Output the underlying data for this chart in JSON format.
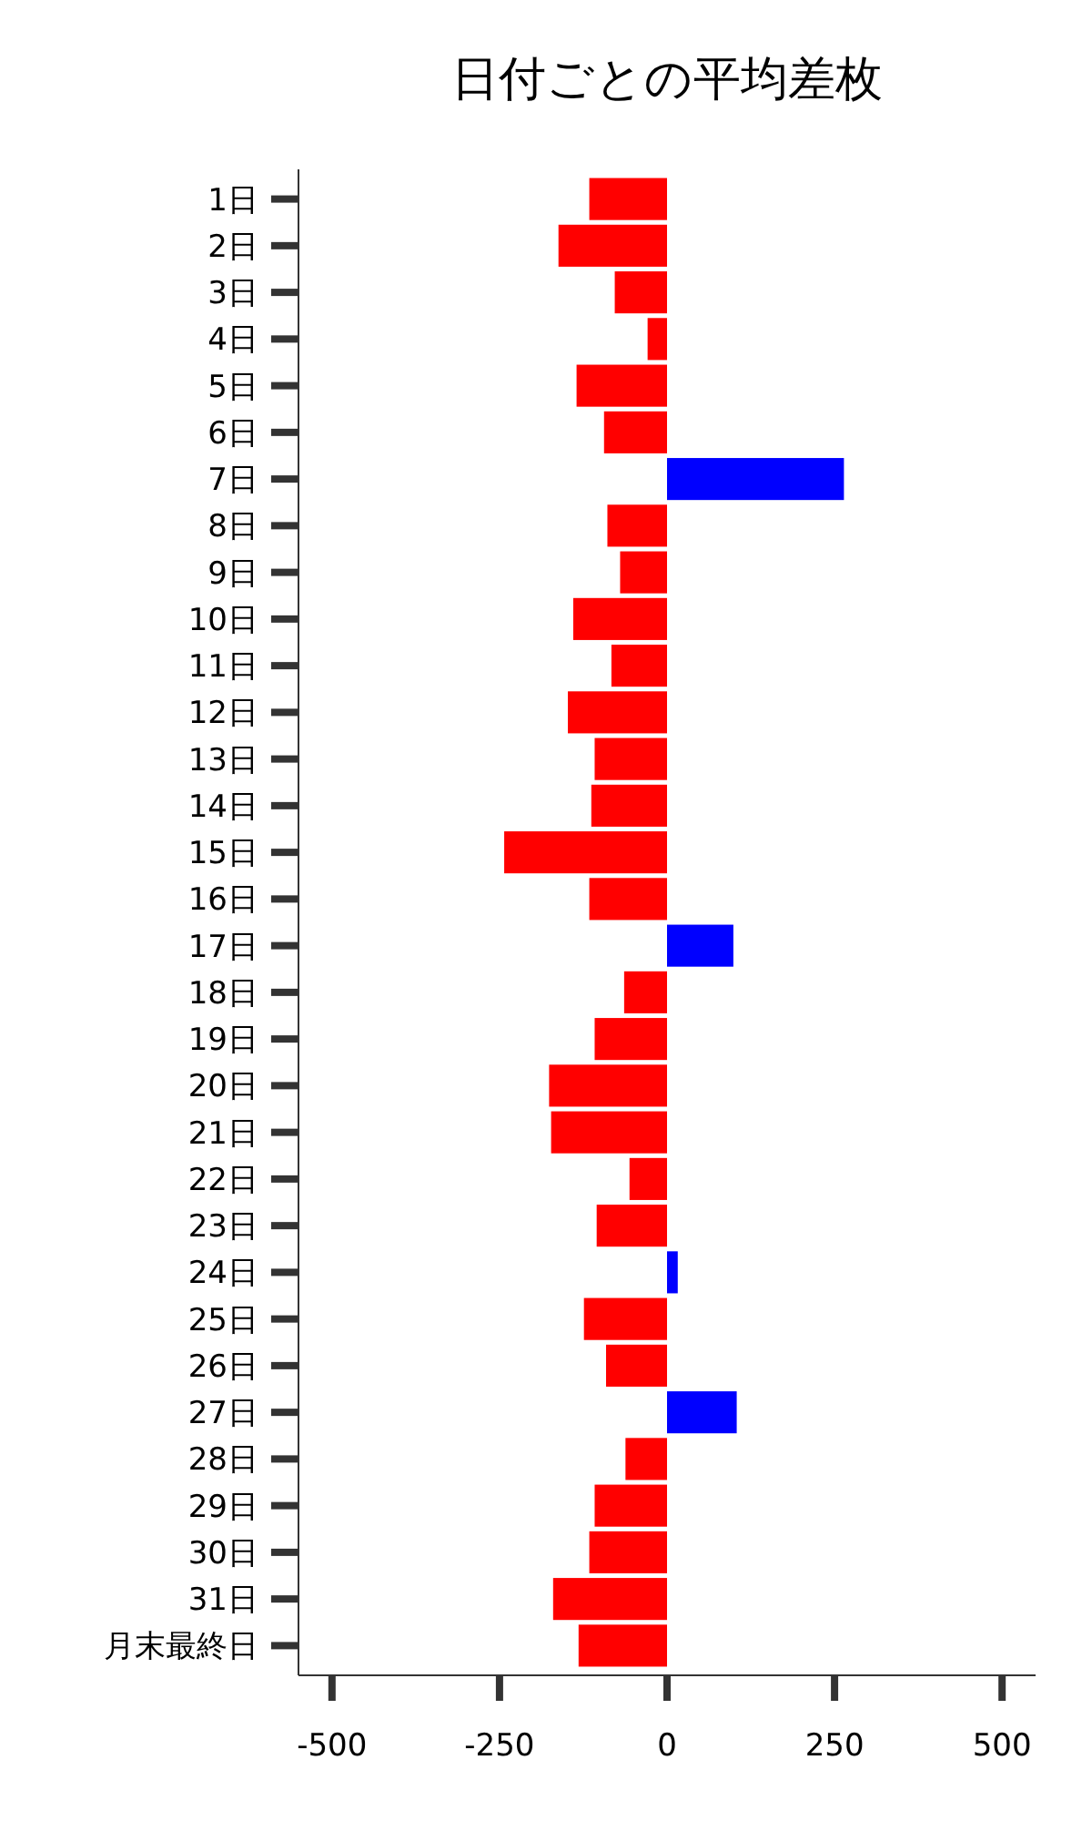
{
  "chart_data": {
    "type": "bar",
    "orientation": "horizontal",
    "title": "日付ごとの平均差枚",
    "categories": [
      "1日",
      "2日",
      "3日",
      "4日",
      "5日",
      "6日",
      "7日",
      "8日",
      "9日",
      "10日",
      "11日",
      "12日",
      "13日",
      "14日",
      "15日",
      "16日",
      "17日",
      "18日",
      "19日",
      "20日",
      "21日",
      "22日",
      "23日",
      "24日",
      "25日",
      "26日",
      "27日",
      "28日",
      "29日",
      "30日",
      "31日",
      "月末最終日"
    ],
    "values": [
      -116,
      -162,
      -78,
      -29,
      -135,
      -94,
      264,
      -89,
      -70,
      -140,
      -83,
      -148,
      -108,
      -113,
      -243,
      -116,
      99,
      -64,
      -108,
      -176,
      -173,
      -56,
      -105,
      16,
      -124,
      -91,
      104,
      -62,
      -108,
      -116,
      -170,
      -132
    ],
    "colors": [
      "#ff0000",
      "#ff0000",
      "#ff0000",
      "#ff0000",
      "#ff0000",
      "#ff0000",
      "#0000ff",
      "#ff0000",
      "#ff0000",
      "#ff0000",
      "#ff0000",
      "#ff0000",
      "#ff0000",
      "#ff0000",
      "#ff0000",
      "#ff0000",
      "#0000ff",
      "#ff0000",
      "#ff0000",
      "#ff0000",
      "#ff0000",
      "#ff0000",
      "#ff0000",
      "#0000ff",
      "#ff0000",
      "#ff0000",
      "#0000ff",
      "#ff0000",
      "#ff0000",
      "#ff0000",
      "#ff0000",
      "#ff0000"
    ],
    "xlim": [
      -550,
      550
    ],
    "xticks": [
      -500,
      -250,
      0,
      250,
      500
    ],
    "grid": false
  }
}
